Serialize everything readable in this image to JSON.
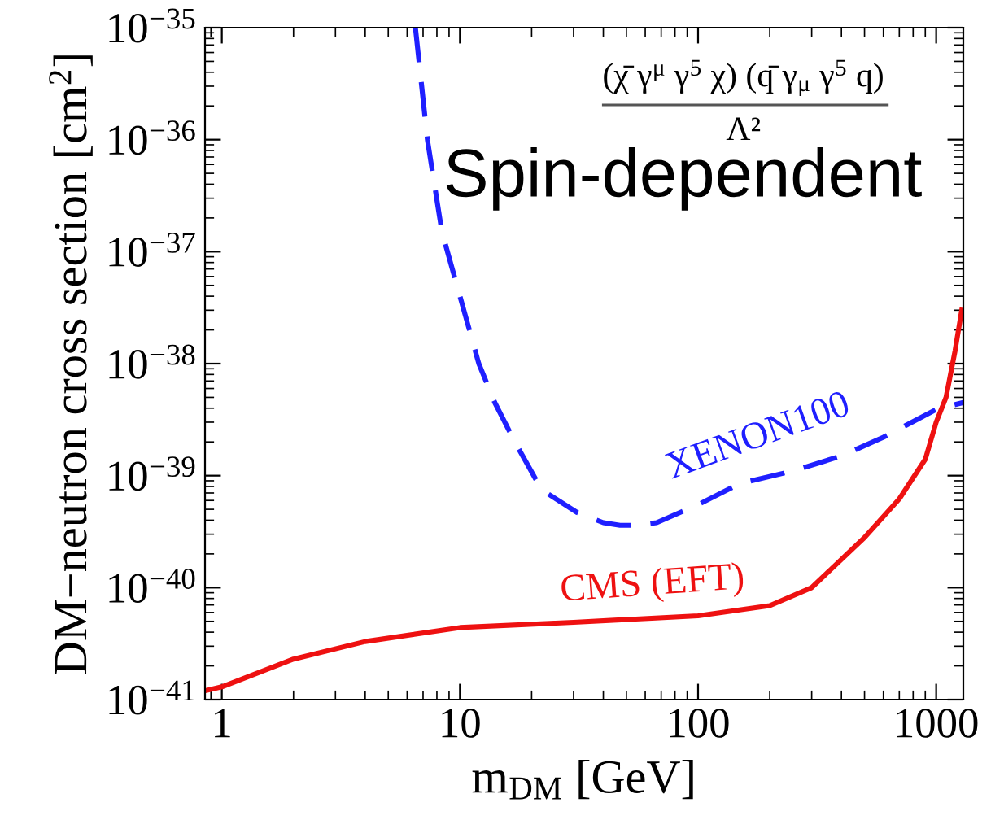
{
  "chart_data": {
    "type": "line",
    "xlabel": "m$_{DM}$ [GeV]",
    "ylabel": "DM−neutron cross section [cm$^{2}$]",
    "log": "xy",
    "grid": false,
    "legend": false,
    "xlim": [
      0.85,
      1300
    ],
    "xticks": [
      1,
      10,
      100,
      1000
    ],
    "ylim": [
      1e-41,
      1e-35
    ],
    "yticks": [
      {
        "value": 1e-41,
        "label": "10$^{−41}$"
      },
      {
        "value": 1e-40,
        "label": "10$^{−40}$"
      },
      {
        "value": 1e-39,
        "label": "10$^{−39}$"
      },
      {
        "value": 1e-38,
        "label": "10$^{−38}$"
      },
      {
        "value": 1e-37,
        "label": "10$^{−37}$"
      },
      {
        "value": 1e-36,
        "label": "10$^{−36}$"
      },
      {
        "value": 1e-35,
        "label": "10$^{−35}$"
      }
    ],
    "series": [
      {
        "name": "XENON100",
        "color": "#1f1fff",
        "line_style": "dashed",
        "x": [
          6.5,
          7.3,
          8.4,
          10,
          12,
          14,
          17,
          22,
          31,
          40,
          47,
          55,
          67,
          100,
          150,
          250,
          400,
          600,
          1000,
          1300
        ],
        "values": [
          1e-35,
          1e-36,
          1.5e-37,
          4e-38,
          1e-38,
          4.5e-39,
          2e-39,
          7.5e-40,
          4.7e-40,
          3.8e-40,
          3.6e-40,
          3.6e-40,
          3.8e-40,
          5.5e-40,
          8.5e-40,
          1.1e-39,
          1.5e-39,
          2.2e-39,
          3.9e-39,
          4.5e-39
        ]
      },
      {
        "name": "CMS (EFT)",
        "color": "#ee1111",
        "line_style": "solid",
        "x": [
          0.85,
          1,
          2,
          4,
          10,
          30,
          100,
          200,
          300,
          500,
          700,
          900,
          1000,
          1100,
          1200,
          1280
        ],
        "values": [
          1.2e-41,
          1.3e-41,
          2.3e-41,
          3.3e-41,
          4.4e-41,
          4.9e-41,
          5.6e-41,
          6.9e-41,
          1e-40,
          2.8e-40,
          6.2e-40,
          1.4e-39,
          3e-39,
          5e-39,
          1.3e-38,
          3e-38
        ]
      }
    ],
    "annotations": [
      "Spin-dependent",
      "(χ̄ γ$^{μ}$ γ$^{5}$ χ) (q̄ γ$_{μ}$ γ$^{5}$ q)",
      "Λ²"
    ]
  }
}
